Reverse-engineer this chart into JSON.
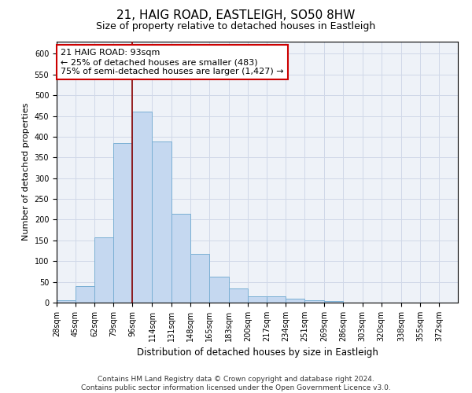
{
  "title1": "21, HAIG ROAD, EASTLEIGH, SO50 8HW",
  "title2": "Size of property relative to detached houses in Eastleigh",
  "xlabel": "Distribution of detached houses by size in Eastleigh",
  "ylabel": "Number of detached properties",
  "footer1": "Contains HM Land Registry data © Crown copyright and database right 2024.",
  "footer2": "Contains public sector information licensed under the Open Government Licence v3.0.",
  "annotation_title": "21 HAIG ROAD: 93sqm",
  "annotation_line1": "← 25% of detached houses are smaller (483)",
  "annotation_line2": "75% of semi-detached houses are larger (1,427) →",
  "bin_labels": [
    "28sqm",
    "45sqm",
    "62sqm",
    "79sqm",
    "96sqm",
    "114sqm",
    "131sqm",
    "148sqm",
    "165sqm",
    "183sqm",
    "200sqm",
    "217sqm",
    "234sqm",
    "251sqm",
    "269sqm",
    "286sqm",
    "303sqm",
    "320sqm",
    "338sqm",
    "355sqm",
    "372sqm"
  ],
  "bin_edges": [
    28,
    45,
    62,
    79,
    96,
    114,
    131,
    148,
    165,
    183,
    200,
    217,
    234,
    251,
    269,
    286,
    303,
    320,
    338,
    355,
    372,
    389
  ],
  "bar_values": [
    5,
    40,
    158,
    385,
    460,
    388,
    215,
    118,
    62,
    35,
    15,
    15,
    10,
    5,
    3,
    0,
    0,
    0,
    0,
    0,
    0
  ],
  "bar_color": "#c5d8f0",
  "bar_edge_color": "#7aafd4",
  "vline_color": "#8b0000",
  "vline_x": 96,
  "ylim": [
    0,
    630
  ],
  "yticks": [
    0,
    50,
    100,
    150,
    200,
    250,
    300,
    350,
    400,
    450,
    500,
    550,
    600
  ],
  "grid_color": "#d0d8e8",
  "background_color": "#eef2f8",
  "box_color": "#ffffff",
  "title1_fontsize": 11,
  "title2_fontsize": 9,
  "annotation_fontsize": 8,
  "footer_fontsize": 6.5,
  "ylabel_fontsize": 8,
  "xlabel_fontsize": 8.5,
  "tick_fontsize": 7
}
